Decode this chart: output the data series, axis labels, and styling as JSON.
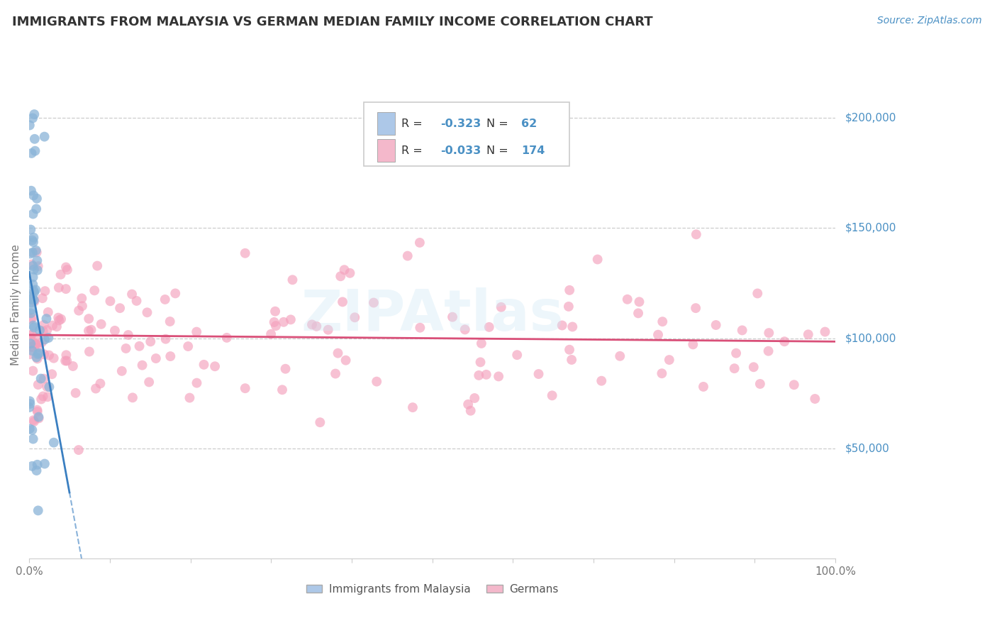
{
  "title": "IMMIGRANTS FROM MALAYSIA VS GERMAN MEDIAN FAMILY INCOME CORRELATION CHART",
  "source_text": "Source: ZipAtlas.com",
  "ylabel": "Median Family Income",
  "xlim": [
    0.0,
    100.0
  ],
  "ylim": [
    0,
    230000
  ],
  "yticks": [
    50000,
    100000,
    150000,
    200000
  ],
  "ytick_labels": [
    "$50,000",
    "$100,000",
    "$150,000",
    "$200,000"
  ],
  "blue_R": -0.323,
  "blue_N": 62,
  "pink_R": -0.033,
  "pink_N": 174,
  "blue_color": "#adc8e8",
  "pink_color": "#f4b8cb",
  "blue_marker_color": "#8ab4d8",
  "pink_marker_color": "#f4a0bc",
  "blue_line_color": "#3a7fc1",
  "pink_line_color": "#d94f78",
  "legend_label_blue": "Immigrants from Malaysia",
  "legend_label_pink": "Germans",
  "watermark": "ZIPAtlas",
  "background_color": "#ffffff",
  "grid_color": "#cccccc",
  "title_color": "#333333",
  "axis_label_color": "#777777",
  "ytick_color": "#4a90c4",
  "xtick_color": "#777777"
}
